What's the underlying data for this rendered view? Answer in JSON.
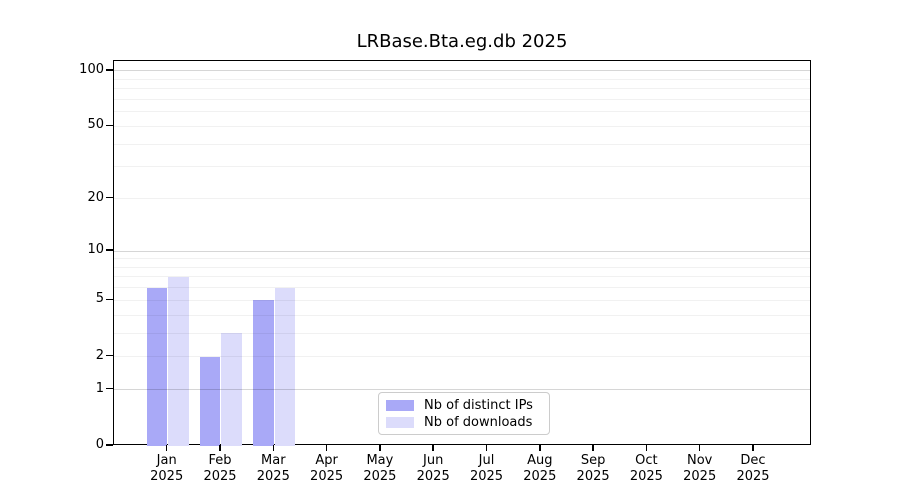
{
  "title": "LRBase.Bta.eg.db 2025",
  "chart_data": {
    "type": "bar",
    "title": "LRBase.Bta.eg.db 2025",
    "categories": [
      "Jan",
      "Feb",
      "Mar",
      "Apr",
      "May",
      "Jun",
      "Jul",
      "Aug",
      "Sep",
      "Oct",
      "Nov",
      "Dec"
    ],
    "year_label": "2025",
    "series": [
      {
        "name": "Nb of distinct IPs",
        "color": "#a9a9f7",
        "values": [
          6,
          2,
          5,
          0,
          0,
          0,
          0,
          0,
          0,
          0,
          0,
          0
        ]
      },
      {
        "name": "Nb of downloads",
        "color": "#dcdcfb",
        "values": [
          7,
          3,
          6,
          0,
          0,
          0,
          0,
          0,
          0,
          0,
          0,
          0
        ]
      }
    ],
    "xlabel": "",
    "ylabel": "",
    "scale": "log1p",
    "ylim": [
      0,
      113
    ],
    "y_ticks": [
      0,
      1,
      2,
      5,
      10,
      20,
      50,
      100
    ],
    "grid": true,
    "grid_minor_values": [
      2,
      3,
      4,
      5,
      6,
      7,
      8,
      9,
      20,
      30,
      40,
      50,
      60,
      70,
      80,
      90
    ],
    "grid_major_values": [
      1,
      10,
      100
    ],
    "legend_position": "lower center",
    "legend": [
      {
        "label": "Nb of distinct IPs",
        "color": "#a9a9f7"
      },
      {
        "label": "Nb of downloads",
        "color": "#dcdcfb"
      }
    ]
  }
}
